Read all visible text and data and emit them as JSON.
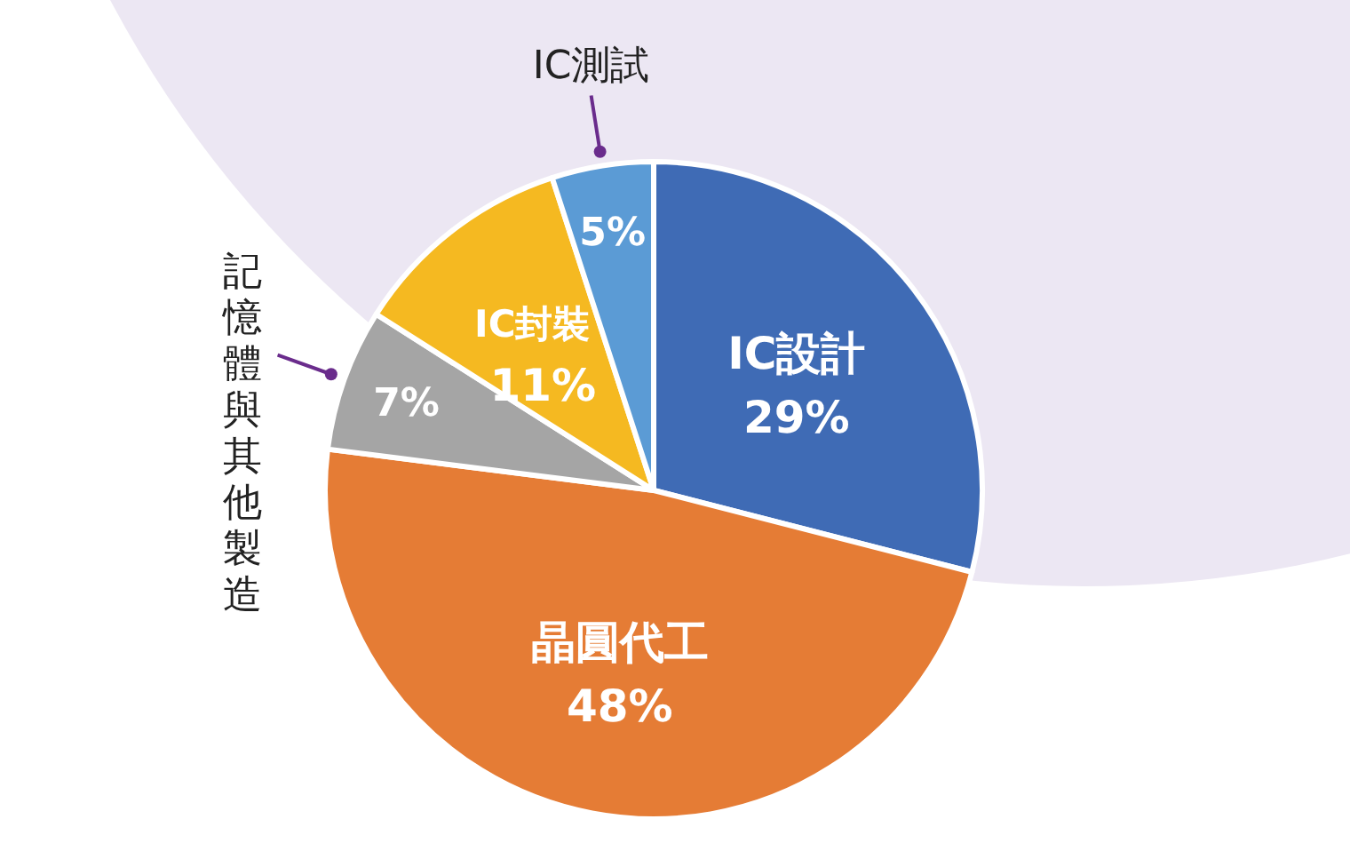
{
  "chart_data": {
    "type": "pie",
    "categories": [
      "IC設計",
      "晶圓代工",
      "記憶體與其他製造",
      "IC封裝",
      "IC測試"
    ],
    "values": [
      29,
      48,
      7,
      11,
      5
    ],
    "value_labels": [
      "29%",
      "48%",
      "7%",
      "11%",
      "5%"
    ],
    "colors": [
      "#3f6bb5",
      "#e57c35",
      "#a5a5a5",
      "#f5b921",
      "#5b9bd5"
    ]
  }
}
